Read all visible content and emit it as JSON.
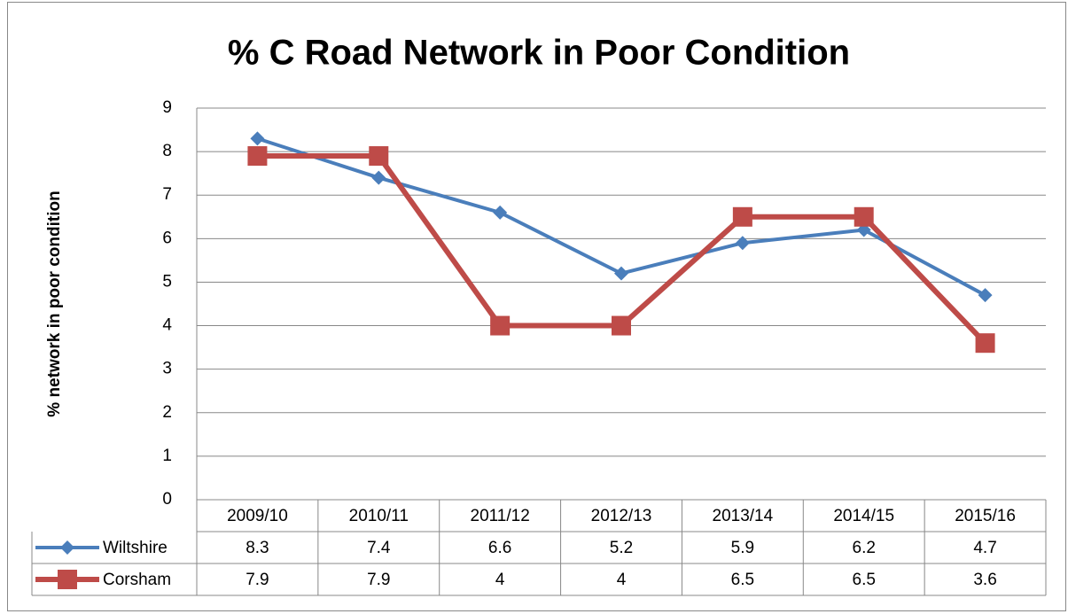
{
  "chart_data": {
    "type": "line",
    "title": "% C Road Network in Poor Condition",
    "y_label": "% network in poor condition",
    "categories": [
      "2009/10",
      "2010/11",
      "2011/12",
      "2012/13",
      "2013/14",
      "2014/15",
      "2015/16"
    ],
    "series": [
      {
        "name": "Wiltshire",
        "color": "#4a7ebb",
        "marker": "diamond",
        "values": [
          8.3,
          7.4,
          6.6,
          5.2,
          5.9,
          6.2,
          4.7
        ]
      },
      {
        "name": "Corsham",
        "color": "#be4b48",
        "marker": "square",
        "values": [
          7.9,
          7.9,
          4,
          4,
          6.5,
          6.5,
          3.6
        ]
      }
    ],
    "ylim": [
      0,
      9
    ],
    "yticks": [
      0,
      1,
      2,
      3,
      4,
      5,
      6,
      7,
      8,
      9
    ],
    "grid": true,
    "data_table": true
  }
}
